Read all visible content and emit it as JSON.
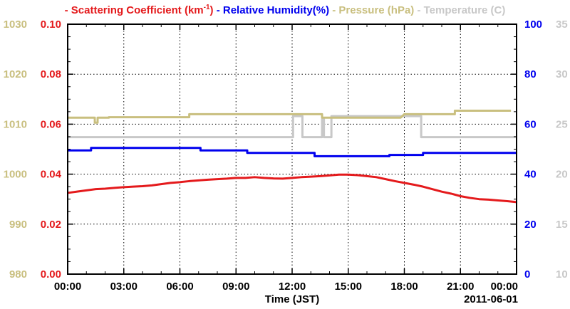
{
  "chart_data": {
    "type": "line",
    "x_start": "00:00",
    "x_end": "24:00",
    "x_ticks": [
      "00:00",
      "03:00",
      "06:00",
      "09:00",
      "12:00",
      "15:00",
      "18:00",
      "21:00",
      "00:00"
    ],
    "xlabel": "Time (JST)",
    "date_label": "2011-06-01",
    "grid": true,
    "legend": {
      "placement": "top",
      "entries": [
        {
          "dash": "-",
          "label": "Scattering Coefficient (km",
          "sup": "-1",
          "suffix": ")",
          "color": "#e41a1c"
        },
        {
          "dash": "-",
          "label": "Relative Humidity(%)",
          "color": "#0000ee"
        },
        {
          "dash": "-",
          "label": "Pressure (hPa)",
          "color": "#c9bf7f"
        },
        {
          "dash": "-",
          "label": "Temperature (C)",
          "color": "#c8c8c8"
        }
      ]
    },
    "axes": {
      "pressure": {
        "side": "left-outer",
        "range": [
          980,
          1030
        ],
        "ticks": [
          "980",
          "990",
          "1000",
          "1010",
          "1020",
          "1030"
        ],
        "color": "#c9bf7f"
      },
      "scattering": {
        "side": "left-inner",
        "range": [
          0,
          0.1
        ],
        "ticks": [
          "0.00",
          "0.02",
          "0.04",
          "0.06",
          "0.08",
          "0.10"
        ],
        "color": "#e41a1c"
      },
      "humidity": {
        "side": "right-inner",
        "range": [
          0,
          100
        ],
        "ticks": [
          "0",
          "20",
          "40",
          "60",
          "80",
          "100"
        ],
        "color": "#0000ee"
      },
      "temperature": {
        "side": "right-outer",
        "range": [
          10,
          35
        ],
        "ticks": [
          "10",
          "15",
          "20",
          "25",
          "30",
          "35"
        ],
        "color": "#c8c8c8"
      }
    },
    "series": [
      {
        "name": "Scattering Coefficient",
        "axis": "scattering",
        "color": "#e41a1c",
        "x": [
          0,
          0.5,
          1,
          1.5,
          2,
          2.5,
          3,
          3.5,
          4,
          4.5,
          5,
          5.5,
          6,
          6.5,
          7,
          7.5,
          8,
          8.5,
          9,
          9.5,
          10,
          10.5,
          11,
          11.5,
          12,
          12.5,
          13,
          13.5,
          14,
          14.5,
          15,
          15.5,
          16,
          16.5,
          17,
          17.5,
          18,
          18.5,
          19,
          19.5,
          20,
          20.5,
          21,
          21.5,
          22,
          22.5,
          23,
          23.5,
          24
        ],
        "y": [
          0.0325,
          0.033,
          0.0335,
          0.034,
          0.0342,
          0.0345,
          0.0348,
          0.035,
          0.0352,
          0.0355,
          0.036,
          0.0365,
          0.0368,
          0.0372,
          0.0375,
          0.0378,
          0.038,
          0.0382,
          0.0385,
          0.0385,
          0.0388,
          0.0385,
          0.0383,
          0.0382,
          0.0385,
          0.0388,
          0.039,
          0.0392,
          0.0395,
          0.0398,
          0.0398,
          0.0396,
          0.0392,
          0.0388,
          0.038,
          0.0372,
          0.0365,
          0.0358,
          0.035,
          0.034,
          0.033,
          0.0322,
          0.0312,
          0.0305,
          0.03,
          0.0298,
          0.0295,
          0.0292,
          0.0288
        ]
      },
      {
        "name": "Relative Humidity",
        "axis": "humidity",
        "color": "#0000ee",
        "x": [
          0,
          1.25,
          1.25,
          7.1,
          7.1,
          9.6,
          9.6,
          13.2,
          13.2,
          17.2,
          17.2,
          19.0,
          19.0,
          24
        ],
        "y": [
          49.5,
          49.5,
          50.5,
          50.5,
          49.5,
          49.5,
          48.5,
          48.5,
          47.2,
          47.2,
          47.7,
          47.7,
          48.5,
          48.5
        ]
      },
      {
        "name": "Pressure",
        "axis": "pressure",
        "color": "#c9bf7f",
        "x": [
          0,
          1.45,
          1.45,
          1.6,
          1.6,
          2.2,
          2.2,
          6.5,
          6.5,
          13.6,
          13.6,
          17.8,
          17.8,
          18.0,
          18.0,
          20.7,
          20.7,
          23.7
        ],
        "y": [
          1011.3,
          1011.3,
          1010.3,
          1010.3,
          1011.3,
          1011.3,
          1011.4,
          1011.4,
          1012.0,
          1012.0,
          1011.3,
          1011.3,
          1011.3,
          1012.0,
          1012.0,
          1012.0,
          1012.7,
          1012.7
        ]
      },
      {
        "name": "Temperature",
        "axis": "temperature",
        "color": "#c8c8c8",
        "x": [
          0,
          12.05,
          12.05,
          12.55,
          12.55,
          13.6,
          13.6,
          13.7,
          13.7,
          14.1,
          14.1,
          14.35,
          14.35,
          18.9,
          18.9,
          24
        ],
        "y": [
          23.7,
          23.7,
          25.8,
          25.8,
          23.7,
          23.7,
          25.5,
          25.5,
          23.7,
          23.7,
          25.8,
          25.8,
          25.8,
          25.8,
          23.7,
          23.7
        ]
      }
    ]
  }
}
